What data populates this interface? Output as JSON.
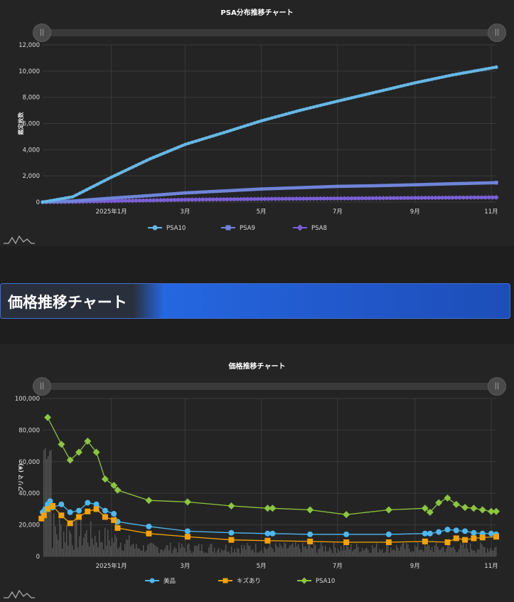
{
  "chart_data": [
    {
      "type": "line",
      "title": "PSA分布推移チャート",
      "ylabel": "鑑定枚数",
      "ylim": [
        0,
        12000
      ],
      "yticks": [
        "0",
        "2,000",
        "4,000",
        "6,000",
        "8,000",
        "10,000",
        "12,000"
      ],
      "xticks": [
        "2025年1月",
        "3月",
        "5月",
        "7月",
        "9月",
        "11月"
      ],
      "legend_position": "bottom",
      "grid": true,
      "x": [
        "2024-11-07",
        "2024-12-01",
        "2025-01-01",
        "2025-02-01",
        "2025-03-01",
        "2025-04-01",
        "2025-05-01",
        "2025-06-01",
        "2025-07-01",
        "2025-08-01",
        "2025-09-01",
        "2025-10-01",
        "2025-11-05"
      ],
      "series": [
        {
          "name": "PSA10",
          "marker": "circle",
          "color": "#66b7e6",
          "values": [
            0,
            400,
            1900,
            3300,
            4400,
            5300,
            6200,
            7000,
            7700,
            8400,
            9100,
            9700,
            10300
          ]
        },
        {
          "name": "PSA9",
          "marker": "square",
          "color": "#6f85d9",
          "values": [
            0,
            80,
            300,
            500,
            700,
            850,
            1000,
            1100,
            1200,
            1250,
            1320,
            1400,
            1480
          ]
        },
        {
          "name": "PSA8",
          "marker": "diamond",
          "color": "#7b5fd6",
          "values": [
            0,
            20,
            80,
            130,
            180,
            210,
            240,
            260,
            280,
            300,
            320,
            340,
            360
          ]
        }
      ]
    },
    {
      "type": "line",
      "title": "価格推移チャート",
      "ylabel": "フリマ (¥)",
      "ylim": [
        0,
        100000
      ],
      "yticks": [
        "0",
        "20,000",
        "40,000",
        "60,000",
        "80,000",
        "100,000"
      ],
      "xticks": [
        "2025年1月",
        "3月",
        "5月",
        "7月",
        "9月",
        "11月"
      ],
      "legend_position": "bottom",
      "grid": true,
      "series": [
        {
          "name": "美品",
          "marker": "circle",
          "color": "#4db8f0",
          "x": [
            "2024-11-07",
            "2024-11-09",
            "2024-11-11",
            "2024-11-13",
            "2024-11-15",
            "2024-11-22",
            "2024-11-29",
            "2024-12-06",
            "2024-12-13",
            "2024-12-20",
            "2024-12-27",
            "2025-01-03",
            "2025-01-06",
            "2025-01-31",
            "2025-03-03",
            "2025-04-07",
            "2025-05-06",
            "2025-05-10",
            "2025-06-09",
            "2025-07-08",
            "2025-08-11",
            "2025-09-09",
            "2025-09-13",
            "2025-09-20",
            "2025-09-27",
            "2025-10-04",
            "2025-10-11",
            "2025-10-18",
            "2025-10-25",
            "2025-11-01",
            "2025-11-05"
          ],
          "values": [
            28000,
            30000,
            33000,
            35000,
            31000,
            33000,
            28000,
            29000,
            34000,
            33000,
            29000,
            27000,
            22000,
            19000,
            16000,
            15000,
            14500,
            14500,
            14000,
            14000,
            14000,
            14500,
            14500,
            15500,
            17000,
            16500,
            16000,
            15000,
            14500,
            14500,
            14000
          ]
        },
        {
          "name": "キズあり",
          "marker": "square",
          "color": "#f5a300",
          "x": [
            "2024-11-06",
            "2024-11-08",
            "2024-11-11",
            "2024-11-15",
            "2024-11-22",
            "2024-11-29",
            "2024-12-06",
            "2024-12-13",
            "2024-12-20",
            "2024-12-27",
            "2025-01-03",
            "2025-01-06",
            "2025-01-31",
            "2025-03-03",
            "2025-04-07",
            "2025-05-06",
            "2025-06-09",
            "2025-07-08",
            "2025-08-11",
            "2025-09-09",
            "2025-09-27",
            "2025-10-04",
            "2025-10-11",
            "2025-10-18",
            "2025-10-25",
            "2025-11-05"
          ],
          "values": [
            24000,
            26000,
            30000,
            32000,
            26000,
            21000,
            25000,
            28500,
            30000,
            25000,
            23000,
            18000,
            14500,
            12500,
            10500,
            10000,
            9500,
            9000,
            9000,
            9500,
            9000,
            11500,
            10500,
            11500,
            12000,
            12500
          ]
        },
        {
          "name": "PSA10",
          "marker": "diamond",
          "color": "#8cc63f",
          "x": [
            "2024-11-11",
            "2024-11-22",
            "2024-11-29",
            "2024-12-06",
            "2024-12-13",
            "2024-12-20",
            "2024-12-27",
            "2025-01-03",
            "2025-01-06",
            "2025-01-31",
            "2025-03-03",
            "2025-04-07",
            "2025-05-06",
            "2025-05-10",
            "2025-06-09",
            "2025-07-08",
            "2025-08-11",
            "2025-09-09",
            "2025-09-13",
            "2025-09-20",
            "2025-09-27",
            "2025-10-04",
            "2025-10-11",
            "2025-10-18",
            "2025-10-25",
            "2025-11-01",
            "2025-11-05"
          ],
          "values": [
            88000,
            71000,
            61000,
            66000,
            73000,
            66000,
            49000,
            45000,
            42000,
            35500,
            34500,
            32000,
            30500,
            30500,
            29500,
            26500,
            29500,
            30500,
            28000,
            34000,
            37000,
            33000,
            31000,
            30500,
            29500,
            28500,
            28500
          ]
        }
      ],
      "volume": {
        "color": "#555555",
        "max_value": 70000
      }
    }
  ],
  "banner": {
    "title": "価格推移チャート"
  }
}
